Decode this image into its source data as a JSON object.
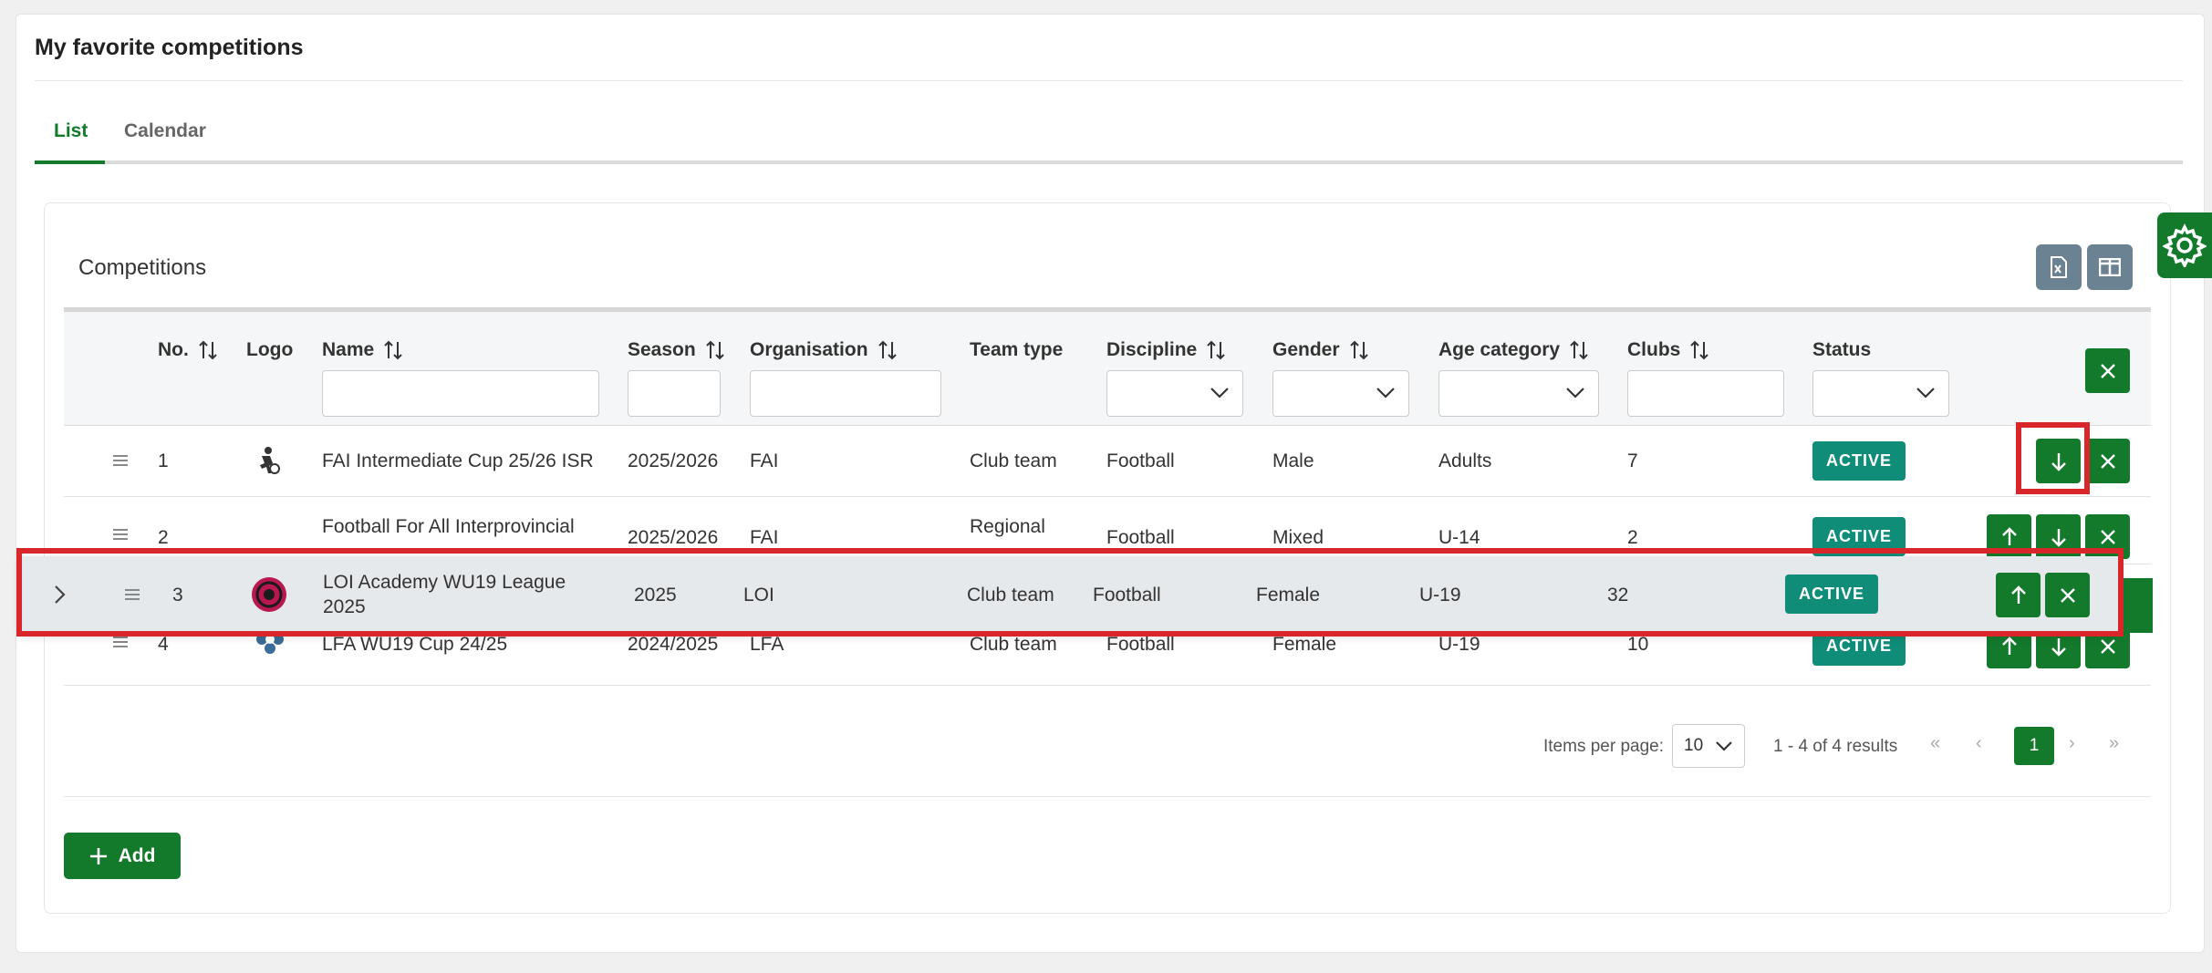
{
  "page": {
    "title": "My favorite competitions"
  },
  "tabs": [
    {
      "label": "List",
      "active": true
    },
    {
      "label": "Calendar",
      "active": false
    }
  ],
  "card": {
    "title": "Competitions",
    "toolbar": [
      {
        "icon": "excel-export-icon"
      },
      {
        "icon": "columns-icon"
      }
    ]
  },
  "columns": {
    "no": "No.",
    "logo": "Logo",
    "name": "Name",
    "season": "Season",
    "organisation": "Organisation",
    "team_type": "Team type",
    "discipline": "Discipline",
    "gender": "Gender",
    "age_category": "Age category",
    "clubs": "Clubs",
    "status": "Status"
  },
  "rows": [
    {
      "no": "1",
      "logo": "fai-logo",
      "name": "FAI Intermediate Cup 25/26 ISR",
      "season": "2025/2026",
      "organisation": "FAI",
      "team_type": "Club team",
      "discipline": "Football",
      "gender": "Male",
      "age_category": "Adults",
      "clubs": "7",
      "status": "ACTIVE"
    },
    {
      "no": "2",
      "logo": "",
      "name": "Football For All Interprovincial",
      "season": "2025/2026",
      "organisation": "FAI",
      "team_type": "Regional",
      "discipline": "Football",
      "gender": "Mixed",
      "age_category": "U-14",
      "clubs": "2",
      "status": "ACTIVE"
    },
    {
      "no": "3",
      "logo": "loi-logo",
      "name": "LOI Academy WU19 League 2025",
      "season": "2025",
      "organisation": "LOI",
      "team_type": "Club team",
      "discipline": "Football",
      "gender": "Female",
      "age_category": "U-19",
      "clubs": "32",
      "status": "ACTIVE"
    },
    {
      "no": "4",
      "logo": "lfa-logo",
      "name": "LFA WU19 Cup 24/25",
      "season": "2024/2025",
      "organisation": "LFA",
      "team_type": "Club team",
      "discipline": "Football",
      "gender": "Female",
      "age_category": "U-19",
      "clubs": "10",
      "status": "ACTIVE"
    }
  ],
  "pagination": {
    "items_per_page_label": "Items per page:",
    "items_per_page": "10",
    "range_text": "1 - 4 of 4 results",
    "current_page": "1"
  },
  "add_button": {
    "label": "Add"
  },
  "colors": {
    "primary": "#137a2c",
    "badge": "#0f8d78",
    "toolbar": "#6a8291",
    "highlight": "#d9262a"
  }
}
